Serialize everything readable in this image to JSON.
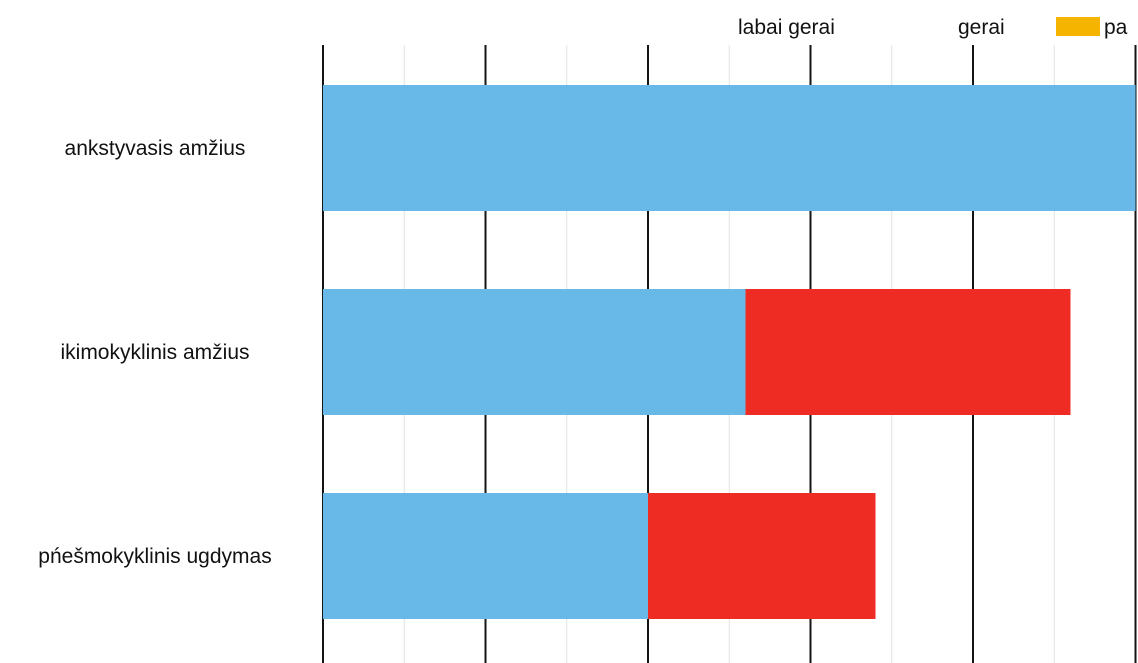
{
  "chart_data": {
    "type": "bar",
    "orientation": "horizontal",
    "stacked": true,
    "categories": [
      "ankstyvasis amžius",
      "ikimokyklinis amžius",
      "pńešmokyklinis ugdymas"
    ],
    "series": [
      {
        "name": "labai gerai",
        "color": "#69b9e8",
        "values": [
          5,
          2.6,
          2
        ]
      },
      {
        "name": "gerai",
        "color": "#ee2c24",
        "values": [
          0,
          2,
          1.4
        ]
      },
      {
        "name": "pa",
        "color": "#f5b400",
        "values": [
          0,
          0,
          0
        ]
      }
    ],
    "xlim": [
      0,
      5
    ],
    "major_ticks": [
      0,
      1,
      2,
      3,
      4,
      5
    ],
    "minor_ticks": [
      0.5,
      1.5,
      2.5,
      3.5,
      4.5
    ],
    "show_tick_labels": false,
    "grid": true,
    "legend_position": "top-right",
    "title": "",
    "xlabel": "",
    "ylabel": ""
  }
}
